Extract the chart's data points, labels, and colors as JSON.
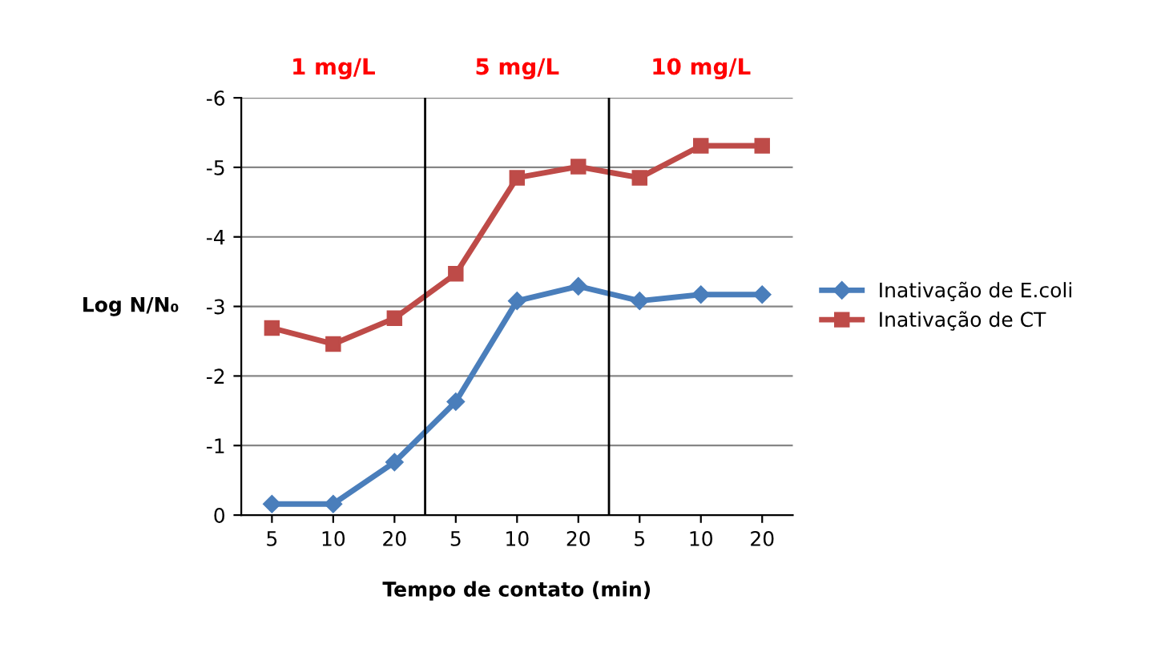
{
  "chart_data": {
    "type": "line",
    "xlabel": "Tempo de contato (min)",
    "ylabel": "Log N/N₀",
    "categories": [
      "5",
      "10",
      "20",
      "5",
      "10",
      "20",
      "5",
      "10",
      "20"
    ],
    "series": [
      {
        "name": "Inativação de E.coli",
        "color": "#4a7ebb",
        "marker": "diamond",
        "values": [
          -0.16,
          -0.16,
          -0.76,
          -1.63,
          -3.08,
          -3.29,
          -3.08,
          -3.17,
          -3.17
        ]
      },
      {
        "name": "Inativação de CT",
        "color": "#be4b48",
        "marker": "square",
        "values": [
          -2.69,
          -2.46,
          -2.83,
          -3.47,
          -4.85,
          -5.01,
          -4.85,
          -5.31,
          -5.31
        ]
      }
    ],
    "ylim": [
      0,
      -6
    ],
    "yticks": [
      -6,
      -5,
      -4,
      -3,
      -2,
      -1,
      0
    ],
    "grid": "y",
    "legend": "right",
    "annotations": [
      "1 mg/L",
      "5 mg/L",
      "10 mg/L"
    ]
  }
}
